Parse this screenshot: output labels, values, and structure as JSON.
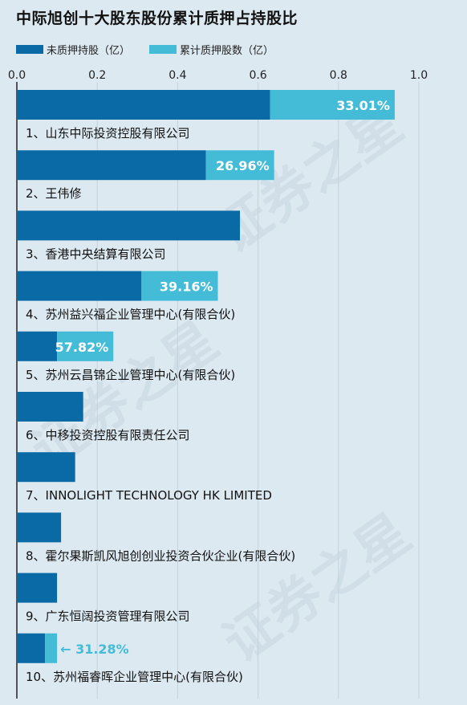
{
  "chart_data": {
    "type": "bar",
    "orientation": "horizontal",
    "stacked": true,
    "title": "中际旭创十大股东股份累计质押占持股比",
    "xlim": [
      0,
      1.0
    ],
    "xticks": [
      "0.0",
      "0.2",
      "0.4",
      "0.6",
      "0.8",
      "1.0"
    ],
    "grid": true,
    "legend_position": "top-left",
    "series": [
      {
        "name": "未质押持股（亿）",
        "color": "#0a6aa6"
      },
      {
        "name": "累计质押股数（亿）",
        "color": "#44bcd8"
      }
    ],
    "categories": [
      "1、山东中际投资控股有限公司",
      "2、王伟修",
      "3、香港中央结算有限公司",
      "4、苏州益兴福企业管理中心(有限合伙)",
      "5、苏州云昌锦企业管理中心(有限合伙)",
      "6、中移投资控股有限责任公司",
      "7、INNOLIGHT TECHNOLOGY HK LIMITED",
      "8、霍尔果斯凯风旭创创业投资合伙企业(有限合伙)",
      "9、广东恒阔投资管理有限公司",
      "10、苏州福睿晖企业管理中心(有限合伙)"
    ],
    "unpledged": [
      0.63,
      0.47,
      0.555,
      0.31,
      0.1,
      0.165,
      0.145,
      0.11,
      0.1,
      0.07
    ],
    "pledged": [
      0.31,
      0.17,
      0.0,
      0.19,
      0.14,
      0.0,
      0.0,
      0.0,
      0.0,
      0.03
    ],
    "pledge_ratio_labels": [
      "33.01%",
      "26.96%",
      "",
      "39.16%",
      "57.82%",
      "",
      "",
      "",
      "",
      "← 31.28%"
    ]
  },
  "watermark_text": "证券之星"
}
